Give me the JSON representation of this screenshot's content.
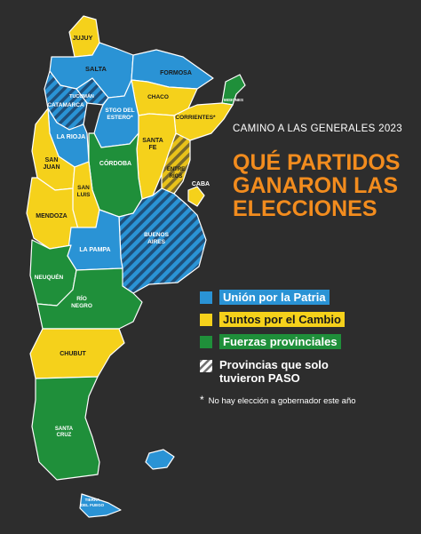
{
  "colors": {
    "background": "#2d2d2d",
    "union_por_la_patria": "#2a93d5",
    "juntos_por_el_cambio": "#f5d11b",
    "fuerzas_provinciales": "#1f8f3a",
    "paso_only_hatch": "#8a8a8a",
    "headline": "#f28c1e"
  },
  "subtitle": "CAMINO A LAS GENERALES 2023",
  "headline": [
    "QUÉ PARTIDOS",
    "GANARON LAS",
    "ELECCIONES"
  ],
  "legend": {
    "upp": "Unión por la Patria",
    "jxc": "Juntos por el Cambio",
    "fp": "Fuerzas provinciales",
    "paso_line1": "Provincias que solo",
    "paso_line2": "tuvieron PASO"
  },
  "note": {
    "star": "*",
    "text": "No hay elección a gobernador este año"
  },
  "provinces": {
    "jujuy": {
      "label": "JUJUY",
      "winner": "Juntos por el Cambio"
    },
    "salta": {
      "label": "SALTA",
      "winner": "Unión por la Patria"
    },
    "formosa": {
      "label": "FORMOSA",
      "winner": "Unión por la Patria"
    },
    "chaco": {
      "label": "CHACO",
      "winner": "Juntos por el Cambio"
    },
    "misiones": {
      "label": "MISIONES",
      "winner": "Fuerzas provinciales"
    },
    "tucuman": {
      "label": "TUCUMÁN",
      "winner": "Unión por la Patria"
    },
    "catamarca": {
      "label": "CATAMARCA",
      "winner": "Provincias que solo tuvieron PASO"
    },
    "stgo_line1": "STGO DEL",
    "stgo_line2": "ESTERO*",
    "santiago": {
      "winner": "Unión por la Patria"
    },
    "corrientes": {
      "label": "CORRIENTES*",
      "winner": "Juntos por el Cambio"
    },
    "la_rioja": {
      "label": "LA RIOJA",
      "winner": "Unión por la Patria"
    },
    "san_juan_line1": "SAN",
    "san_juan_line2": "JUAN",
    "san_juan": {
      "winner": "Juntos por el Cambio"
    },
    "santa_fe_line1": "SANTA",
    "santa_fe_line2": "FE",
    "santa_fe": {
      "winner": "Juntos por el Cambio"
    },
    "cordoba": {
      "label": "CÓRDOBA",
      "winner": "Fuerzas provinciales"
    },
    "entre_rios_line1": "ENTRE",
    "entre_rios_line2": "RÍOS",
    "entre_rios": {
      "winner": "Provincias que solo tuvieron PASO"
    },
    "caba": {
      "label": "CABA",
      "winner": "Juntos por el Cambio"
    },
    "san_luis_line1": "SAN",
    "san_luis_line2": "LUIS",
    "san_luis": {
      "winner": "Juntos por el Cambio"
    },
    "mendoza": {
      "label": "MENDOZA",
      "winner": "Juntos por el Cambio"
    },
    "buenos_aires_line1": "BUENOS",
    "buenos_aires_line2": "AIRES",
    "buenos_aires": {
      "winner": "Provincias que solo tuvieron PASO"
    },
    "la_pampa": {
      "label": "LA PAMPA",
      "winner": "Unión por la Patria"
    },
    "neuquen": {
      "label": "NEUQUÉN",
      "winner": "Fuerzas provinciales"
    },
    "rio_negro_line1": "RÍO",
    "rio_negro_line2": "NEGRO",
    "rio_negro": {
      "winner": "Fuerzas provinciales"
    },
    "chubut": {
      "label": "CHUBUT",
      "winner": "Juntos por el Cambio"
    },
    "santa_cruz_line1": "SANTA",
    "santa_cruz_line2": "CRUZ",
    "santa_cruz": {
      "winner": "Fuerzas provinciales"
    },
    "tdf_line1": "TIERRA",
    "tdf_line2": "DEL FUEGO",
    "tierra_del_fuego": {
      "winner": "Unión por la Patria"
    },
    "malvinas": {
      "winner": "Unión por la Patria"
    }
  }
}
